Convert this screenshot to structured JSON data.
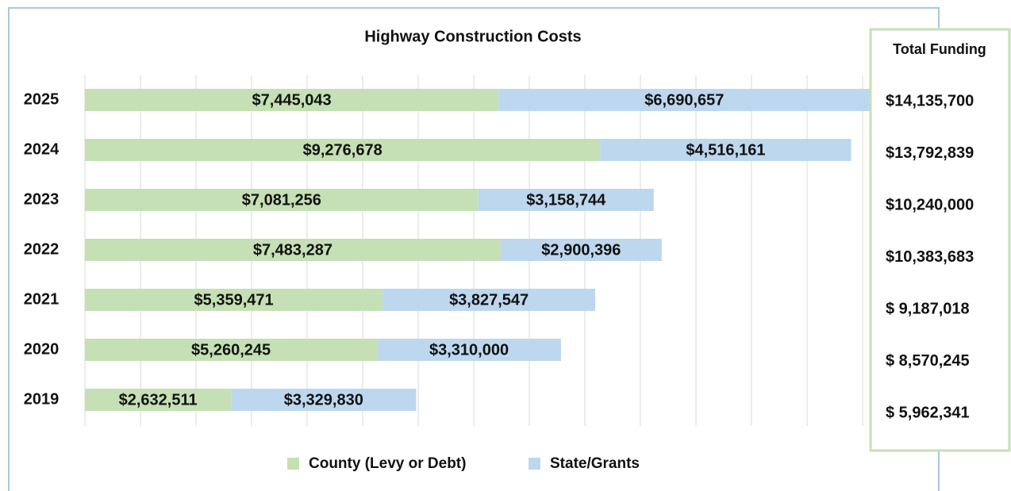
{
  "chart_data": {
    "type": "stacked-bar-horizontal",
    "title": "Highway Construction Costs",
    "categories": [
      "2025",
      "2024",
      "2023",
      "2022",
      "2021",
      "2020",
      "2019"
    ],
    "series": [
      {
        "name": "County (Levy or Debt)",
        "color": "#c5e0b4",
        "values": [
          7445043,
          9276678,
          7081256,
          7483287,
          5359471,
          5260245,
          2632511
        ],
        "value_labels": [
          "$7,445,043",
          "$9,276,678",
          "$7,081,256",
          "$7,483,287",
          "$5,359,471",
          "$5,260,245",
          "$2,632,511"
        ]
      },
      {
        "name": "State/Grants",
        "color": "#bdd7ee",
        "values": [
          6690657,
          4516161,
          3158744,
          2900396,
          3827547,
          3310000,
          3329830
        ],
        "value_labels": [
          "$6,690,657",
          "$4,516,161",
          "$3,158,744",
          "$2,900,396",
          "$3,827,547",
          "$3,310,000",
          "$3,329,830"
        ]
      }
    ],
    "xlim": [
      0,
      14200000
    ],
    "xticks": [
      0,
      1000000,
      2000000,
      3000000,
      4000000,
      5000000,
      6000000,
      7000000,
      8000000,
      9000000,
      10000000,
      11000000,
      12000000,
      13000000,
      14000000
    ],
    "grid": true,
    "legend": "bottom",
    "total_funding": {
      "title": "Total Funding",
      "labels": [
        "$14,135,700",
        "$13,792,839",
        "$10,240,000",
        "$10,383,683",
        "$ 9,187,018",
        "$ 8,570,245",
        "$ 5,962,341"
      ]
    }
  }
}
